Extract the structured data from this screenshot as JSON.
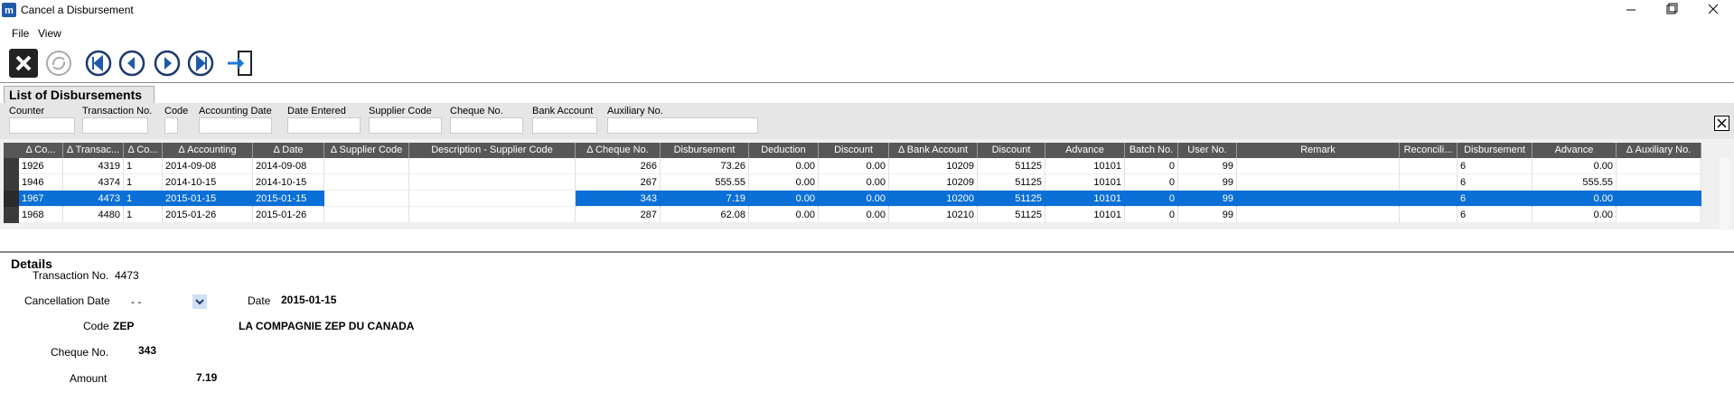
{
  "window": {
    "title": "Cancel a Disbursement"
  },
  "menu": [
    "File",
    "View"
  ],
  "panel": {
    "title": "List of Disbursements"
  },
  "filters": [
    "Counter",
    "Transaction No.",
    "Code",
    "Accounting Date",
    "Date Entered",
    "Supplier Code",
    "Cheque No.",
    "Bank Account",
    "Auxiliary No."
  ],
  "table": {
    "columns": [
      "Δ Co...",
      "Δ Transac...",
      "Δ Co...",
      "Δ Accounting",
      "Δ Date",
      "Δ Supplier Code",
      "Description - Supplier Code",
      "Δ Cheque No.",
      "Disbursement",
      "Deduction",
      "Discount",
      "Δ Bank Account",
      "Discount",
      "Advance",
      "Batch No.",
      "User No.",
      "Remark",
      "Reconcili...",
      "Disbursement",
      "Advance",
      "Δ Auxiliary No."
    ],
    "rows": [
      [
        "1926",
        "4319",
        "1",
        "2014-09-08",
        "2014-09-08",
        null,
        null,
        "266",
        "73.26",
        "0.00",
        "0.00",
        "10209",
        "51125",
        "10101",
        "0",
        "99",
        null,
        null,
        "6",
        "0.00",
        null
      ],
      [
        "1946",
        "4374",
        "1",
        "2014-10-15",
        "2014-10-15",
        null,
        null,
        "267",
        "555.55",
        "0.00",
        "0.00",
        "10209",
        "51125",
        "10101",
        "0",
        "99",
        null,
        null,
        "6",
        "555.55",
        null
      ],
      [
        "1967",
        "4473",
        "1",
        "2015-01-15",
        "2015-01-15",
        null,
        null,
        "343",
        "7.19",
        "0.00",
        "0.00",
        "10200",
        "51125",
        "10101",
        "0",
        "99",
        null,
        null,
        "6",
        "0.00",
        null
      ],
      [
        "1968",
        "4480",
        "1",
        "2015-01-26",
        "2015-01-26",
        null,
        null,
        "287",
        "62.08",
        "0.00",
        "0.00",
        "10210",
        "51125",
        "10101",
        "0",
        "99",
        null,
        null,
        "6",
        "0.00",
        null
      ]
    ],
    "selected_row": 2
  },
  "details": {
    "title": "Details",
    "transaction_label": "Transaction No.",
    "transaction_value": "4473",
    "cancellation_label": "Cancellation Date",
    "cancellation_value": "- -",
    "date_label": "Date",
    "date_value": "2015-01-15",
    "code_label": "Code",
    "code_value": "ZEP",
    "supplier_name": "LA COMPAGNIE ZEP DU CANADA",
    "cheque_label": "Cheque No.",
    "cheque_value": "343",
    "amount_label": "Amount",
    "amount_value": "7.19"
  }
}
